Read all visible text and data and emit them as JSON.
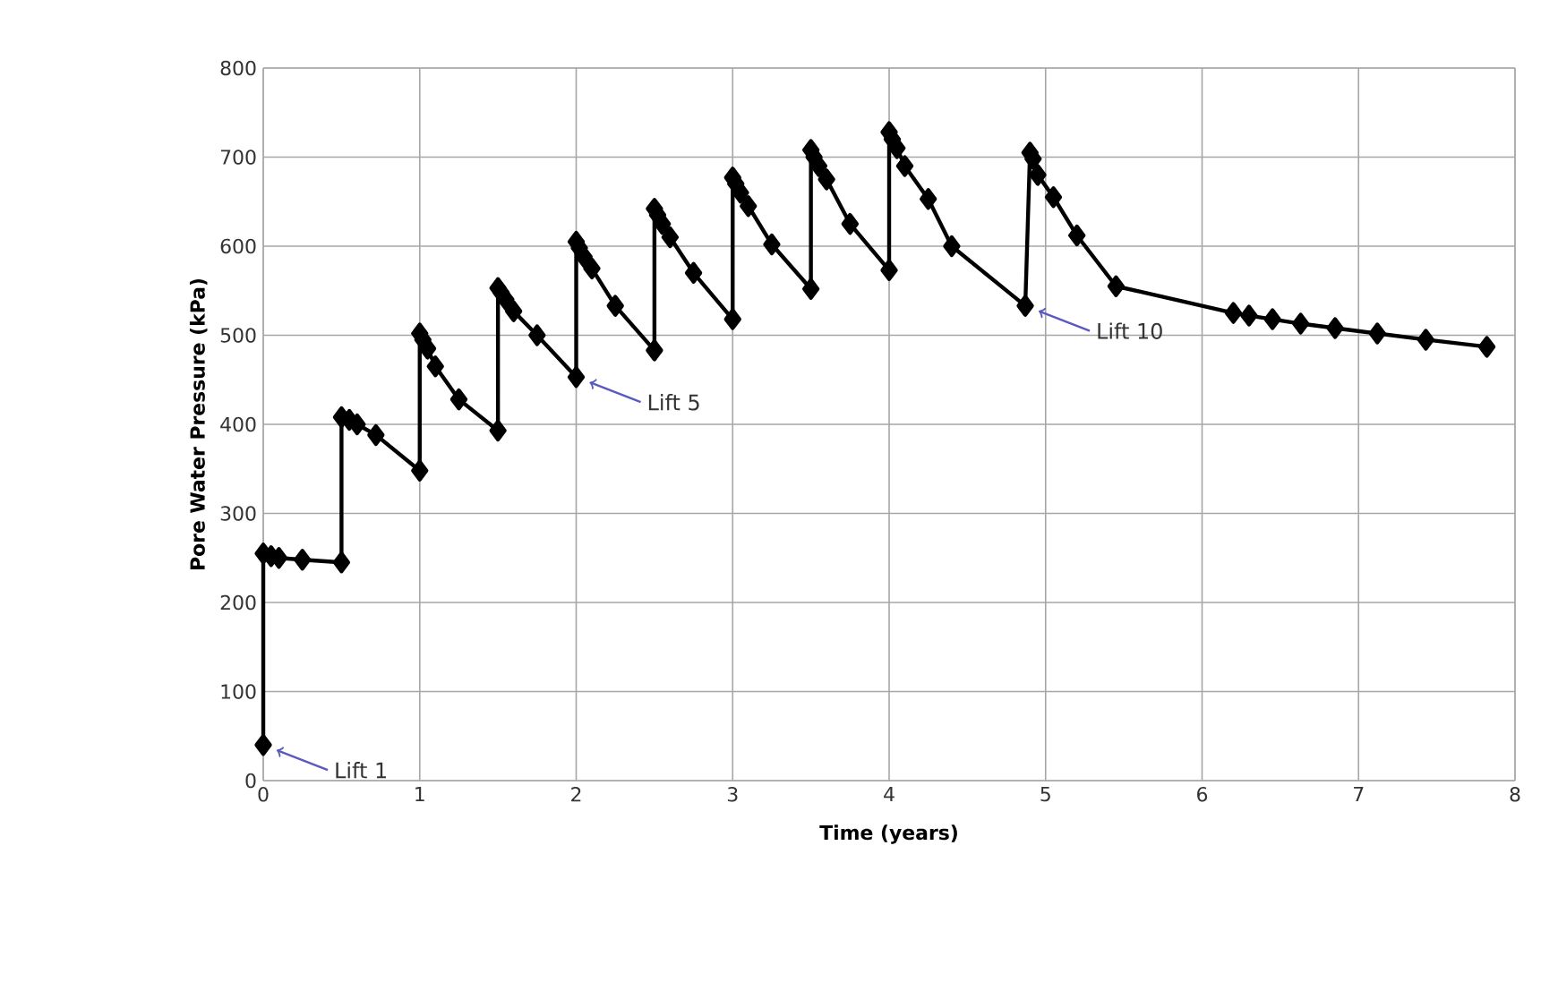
{
  "chart_data": {
    "type": "line",
    "xlabel": "Time (years)",
    "ylabel": "Pore Water Pressure (kPa)",
    "series": [
      {
        "color": "#000000",
        "x": [
          0,
          0,
          0.05,
          0.1,
          0.25,
          0.5,
          0.5,
          0.55,
          0.6,
          0.72,
          1.0,
          1.0,
          1.02,
          1.05,
          1.1,
          1.25,
          1.5,
          1.5,
          1.52,
          1.55,
          1.6,
          1.75,
          2.0,
          2.0,
          2.02,
          2.05,
          2.1,
          2.25,
          2.5,
          2.5,
          2.52,
          2.55,
          2.6,
          2.75,
          3.0,
          3.0,
          3.02,
          3.05,
          3.1,
          3.25,
          3.5,
          3.5,
          3.52,
          3.55,
          3.6,
          3.75,
          4.0,
          4.0,
          4.02,
          4.05,
          4.1,
          4.25,
          4.4,
          4.87,
          4.9,
          4.92,
          4.95,
          5.05,
          5.2,
          5.45,
          6.2,
          6.3,
          6.45,
          6.63,
          6.85,
          7.12,
          7.43,
          7.82
        ],
        "values": [
          40,
          255,
          252,
          250,
          248,
          245,
          408,
          405,
          400,
          388,
          348,
          502,
          495,
          485,
          465,
          428,
          393,
          553,
          548,
          540,
          527,
          500,
          453,
          605,
          598,
          588,
          575,
          533,
          483,
          642,
          635,
          625,
          610,
          570,
          518,
          677,
          670,
          660,
          645,
          602,
          552,
          708,
          700,
          690,
          675,
          625,
          573,
          728,
          720,
          710,
          690,
          653,
          600,
          533,
          705,
          698,
          680,
          655,
          612,
          555,
          525,
          522,
          518,
          513,
          508,
          502,
          495,
          487
        ]
      }
    ],
    "xlim": [
      0,
      8
    ],
    "ylim": [
      0,
      800
    ],
    "xticks": [
      0,
      1,
      2,
      3,
      4,
      5,
      6,
      7,
      8
    ],
    "yticks": [
      0,
      100,
      200,
      300,
      400,
      500,
      600,
      700,
      800
    ],
    "grid": true,
    "marker": "diamond",
    "line_style": "solid",
    "annotations": [
      {
        "text": "Lift 1",
        "x": 0,
        "y": 40
      },
      {
        "text": "Lift 5",
        "x": 2,
        "y": 453
      },
      {
        "text": "Lift 10",
        "x": 4.87,
        "y": 533
      }
    ]
  }
}
